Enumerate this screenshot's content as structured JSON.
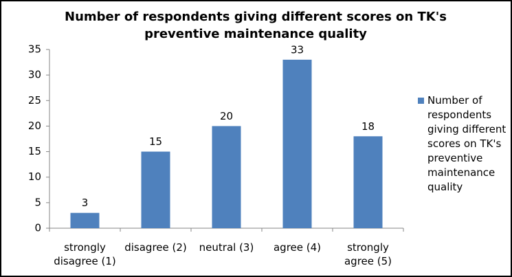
{
  "chart_data": {
    "type": "bar",
    "title": "Number of respondents giving different scores on TK's preventive maintenance quality",
    "categories": [
      "strongly disagree (1)",
      "disagree (2)",
      "neutral (3)",
      "agree (4)",
      "strongly agree (5)"
    ],
    "series": [
      {
        "name": "Number of respondents giving different scores on TK's preventive maintenance quality",
        "color": "#4f81bd",
        "values": [
          3,
          15,
          20,
          33,
          18
        ]
      }
    ],
    "ylim": [
      0,
      35
    ],
    "yticks": [
      0,
      5,
      10,
      15,
      20,
      25,
      30,
      35
    ],
    "grid": false,
    "legend": "right"
  }
}
